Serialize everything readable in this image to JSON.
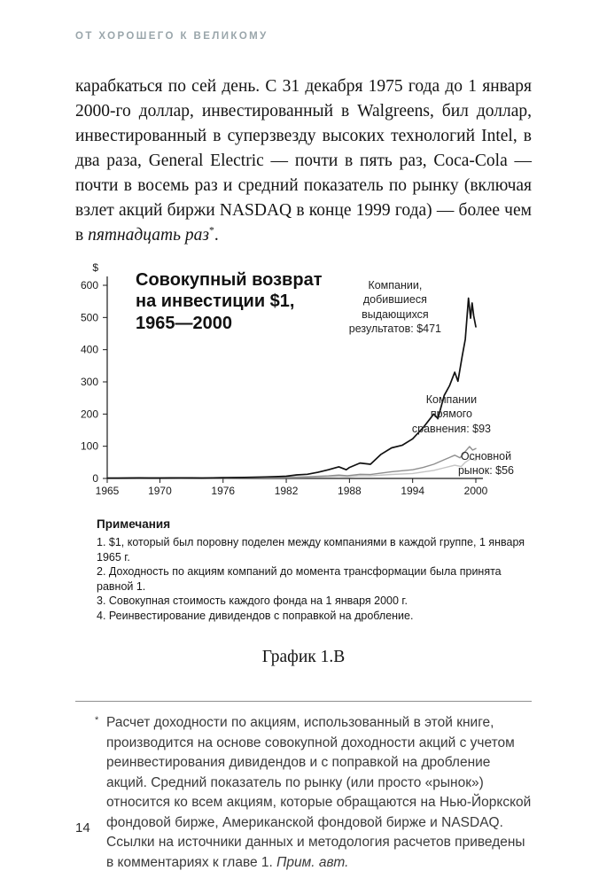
{
  "page": {
    "running_header": "ОТ ХОРОШЕГО К ВЕЛИКОМУ",
    "page_number": "14"
  },
  "paragraph": {
    "text_before_italic": "карабкаться по сей день. С 31 декабря 1975 года до 1 января 2000-го доллар, инвестированный в Walgreens, бил доллар, инвестированный в суперзвезду высоких технологий Intel, в два раза, General Electric — почти в пять раз, Coca-Cola — почти в восемь раз и средний показатель по рынку (включая взлет акций биржи NASDAQ в конце 1999 года) — более чем в ",
    "italic_text": "пятнадцать раз",
    "footnote_marker": "*",
    "text_after": "."
  },
  "chart_data": {
    "type": "line",
    "title": "Совокупный возврат\nна инвестиции $1,\n1965—2000",
    "currency_symbol": "$",
    "xlabel": "",
    "ylabel": "$",
    "xlim": [
      1965,
      2000
    ],
    "ylim": [
      0,
      600
    ],
    "y_ticks": [
      0,
      100,
      200,
      300,
      400,
      500,
      600
    ],
    "x_ticks": [
      1965,
      1970,
      1976,
      1982,
      1988,
      1994,
      2000
    ],
    "grid": false,
    "legend_position": "annotations-right",
    "series": [
      {
        "name": "Компании, добившиеся выдающихся результатов",
        "final_value": 471,
        "color": "#111111",
        "width": 1.7,
        "points": [
          [
            1965,
            1
          ],
          [
            1966,
            1.2
          ],
          [
            1967,
            1.5
          ],
          [
            1968,
            1.7
          ],
          [
            1969,
            1.4
          ],
          [
            1970,
            1.3
          ],
          [
            1971,
            1.7
          ],
          [
            1972,
            2
          ],
          [
            1973,
            1.6
          ],
          [
            1974,
            1.3
          ],
          [
            1975,
            1.9
          ],
          [
            1976,
            2.4
          ],
          [
            1977,
            2.7
          ],
          [
            1978,
            3.1
          ],
          [
            1979,
            3.9
          ],
          [
            1980,
            4.6
          ],
          [
            1981,
            5.6
          ],
          [
            1982,
            7
          ],
          [
            1983,
            11
          ],
          [
            1984,
            13
          ],
          [
            1985,
            19
          ],
          [
            1986,
            27
          ],
          [
            1987,
            36
          ],
          [
            1987.7,
            27
          ],
          [
            1988,
            34
          ],
          [
            1989,
            48
          ],
          [
            1990,
            44
          ],
          [
            1991,
            75
          ],
          [
            1992,
            95
          ],
          [
            1993,
            103
          ],
          [
            1994,
            123
          ],
          [
            1995,
            158
          ],
          [
            1996,
            200
          ],
          [
            1996.4,
            186
          ],
          [
            1997,
            258
          ],
          [
            1997.5,
            288
          ],
          [
            1998,
            330
          ],
          [
            1998.3,
            302
          ],
          [
            1998.7,
            378
          ],
          [
            1999,
            432
          ],
          [
            1999.3,
            560
          ],
          [
            1999.5,
            498
          ],
          [
            1999.65,
            545
          ],
          [
            1999.8,
            505
          ],
          [
            2000,
            471
          ]
        ]
      },
      {
        "name": "Компании прямого сравнения",
        "final_value": 93,
        "color": "#8f8f8f",
        "width": 1.4,
        "points": [
          [
            1965,
            1
          ],
          [
            1966,
            1.1
          ],
          [
            1968,
            1.4
          ],
          [
            1970,
            1.3
          ],
          [
            1972,
            1.6
          ],
          [
            1974,
            1.1
          ],
          [
            1976,
            1.7
          ],
          [
            1978,
            2.1
          ],
          [
            1980,
            2.6
          ],
          [
            1982,
            3.4
          ],
          [
            1984,
            5.2
          ],
          [
            1986,
            8
          ],
          [
            1987,
            10.5
          ],
          [
            1987.8,
            8.5
          ],
          [
            1989,
            13
          ],
          [
            1990,
            12
          ],
          [
            1992,
            21
          ],
          [
            1994,
            27
          ],
          [
            1995,
            34
          ],
          [
            1996,
            44
          ],
          [
            1997,
            58
          ],
          [
            1998,
            72
          ],
          [
            1998.5,
            64
          ],
          [
            1999,
            84
          ],
          [
            1999.4,
            99
          ],
          [
            1999.7,
            88
          ],
          [
            2000,
            93
          ]
        ]
      },
      {
        "name": "Основной рынок",
        "final_value": 56,
        "color": "#c4c4c4",
        "width": 1.4,
        "points": [
          [
            1965,
            1
          ],
          [
            1968,
            1.3
          ],
          [
            1970,
            1.1
          ],
          [
            1973,
            1.4
          ],
          [
            1974,
            1
          ],
          [
            1976,
            1.5
          ],
          [
            1980,
            1.9
          ],
          [
            1982,
            2.3
          ],
          [
            1984,
            3.4
          ],
          [
            1986,
            5.5
          ],
          [
            1987,
            7
          ],
          [
            1987.8,
            5.5
          ],
          [
            1989,
            8.5
          ],
          [
            1990,
            8
          ],
          [
            1992,
            12.5
          ],
          [
            1994,
            15.5
          ],
          [
            1996,
            25
          ],
          [
            1997,
            33
          ],
          [
            1998,
            41
          ],
          [
            1998.6,
            37
          ],
          [
            1999,
            50
          ],
          [
            1999.5,
            61
          ],
          [
            2000,
            56
          ]
        ]
      }
    ],
    "annotations": [
      {
        "text": "Компании,\nдобившиеся\nвыдающихся\nрезультатов: $471"
      },
      {
        "text": "Компании\nпрямого\nсравнения: $93"
      },
      {
        "text": "Основной\nрынок: $56"
      }
    ]
  },
  "notes": {
    "title": "Примечания",
    "items": [
      "1. $1, который был поровну поделен между компаниями в каждой группе, 1 января 1965 г.",
      "2. Доходность по акциям компаний до момента трансформации была принята равной 1.",
      "3. Совокупная стоимость каждого фонда на 1 января 2000 г.",
      "4. Реинвестирование дивидендов с поправкой на дробление."
    ]
  },
  "caption": "График 1.В",
  "footnote": {
    "marker": "*",
    "text": "Расчет доходности по акциям, использованный в этой книге, производится на основе совокупной доходности акций с учетом реинвестирования дивидендов и с поправкой на дробление акций. Средний показатель по рынку (или просто «рынок») относится ко всем акциям, которые обращаются на Нью-Йоркской фондовой бирже, Американской фондовой бирже и NASDAQ. Ссылки на источники данных и методология расчетов приведены в комментариях к главе 1. ",
    "italic_text": "Прим. авт."
  }
}
